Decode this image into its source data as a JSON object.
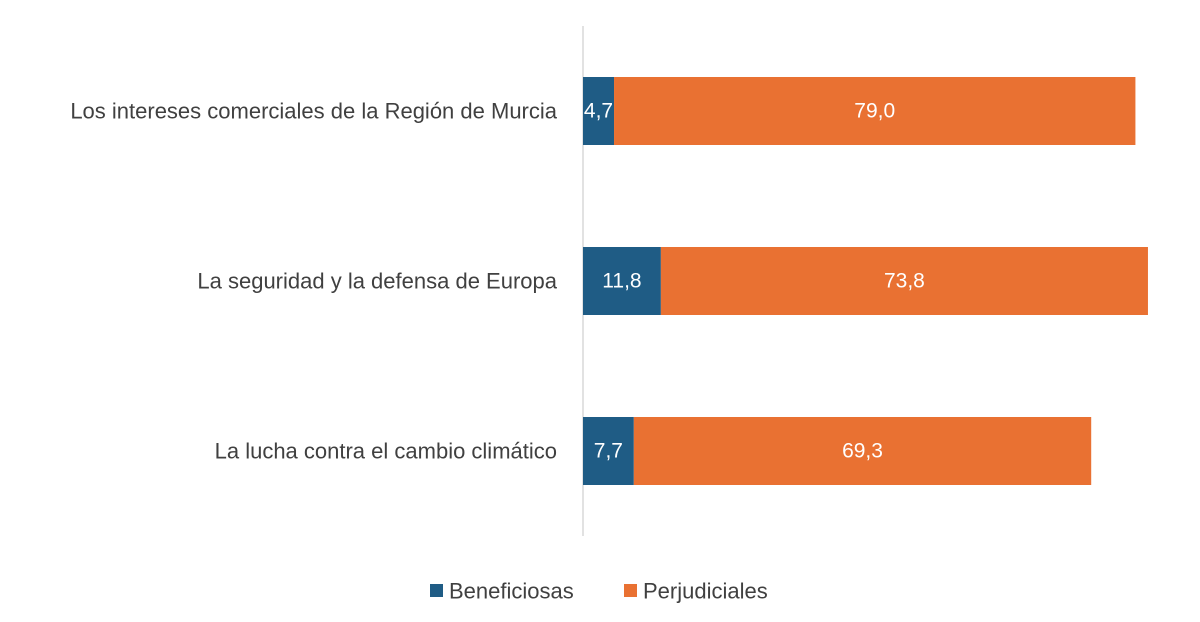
{
  "chart_data": {
    "type": "bar",
    "orientation": "horizontal",
    "stacked": true,
    "categories": [
      "Los intereses comerciales de la Región de Murcia",
      "La seguridad y la defensa de Europa",
      "La lucha contra el cambio climático"
    ],
    "series": [
      {
        "name": "Beneficiosas",
        "color": "#1f5c85",
        "values": [
          4.7,
          11.8,
          7.7
        ],
        "labels": [
          "4,7",
          "11,8",
          "7,7"
        ]
      },
      {
        "name": "Perjudiciales",
        "color": "#e97132",
        "values": [
          79.0,
          73.8,
          69.3
        ],
        "labels": [
          "79,0",
          "73,8",
          "69,3"
        ]
      }
    ],
    "title": "",
    "xlabel": "",
    "ylabel": "",
    "xlim": [
      0,
      87
    ],
    "grid": false,
    "legend_position": "bottom"
  }
}
